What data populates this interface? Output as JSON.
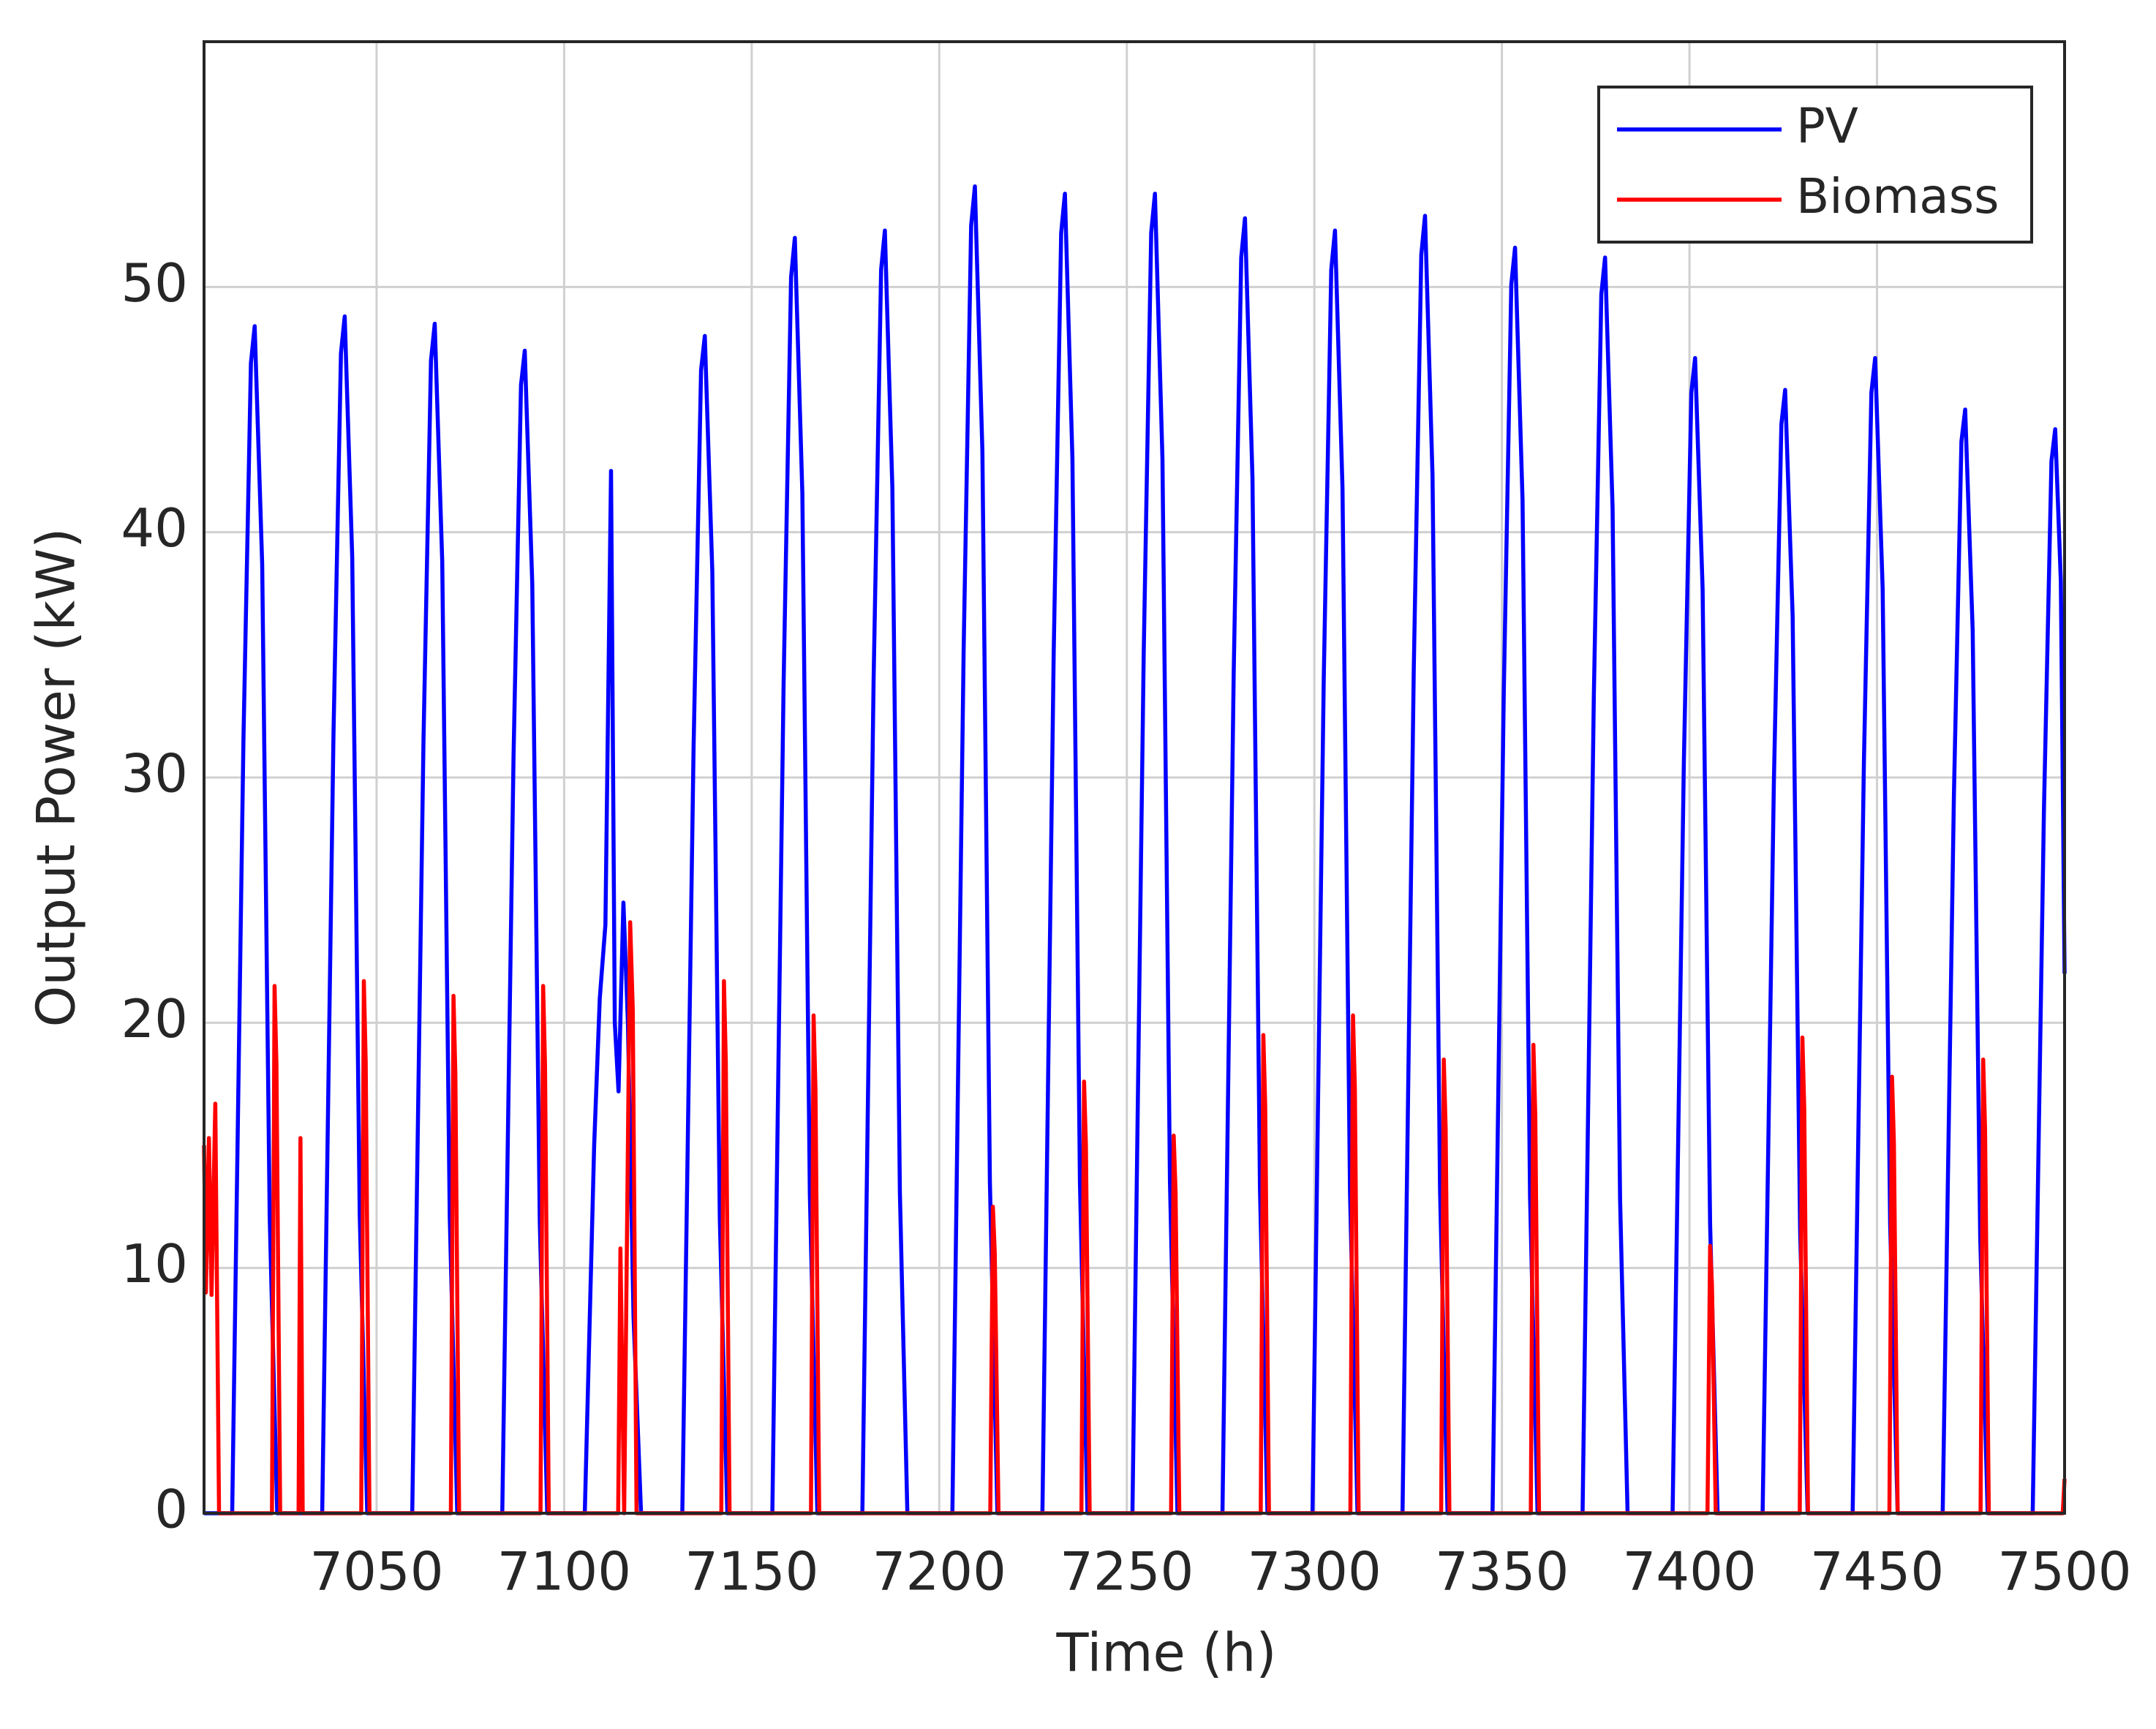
{
  "chart_data": {
    "type": "line",
    "x_label": "Time (h)",
    "y_label": "Output Power (kW)",
    "xlim": [
      7004,
      7500
    ],
    "ylim": [
      0,
      60
    ],
    "xticks": [
      7050,
      7100,
      7150,
      7200,
      7250,
      7300,
      7350,
      7400,
      7450,
      7500
    ],
    "yticks": [
      0,
      10,
      20,
      30,
      40,
      50
    ],
    "grid": true,
    "legend": "upper right",
    "series": [
      {
        "name": "PV",
        "color": "#0000ff",
        "x": [
          7004,
          7011.5,
          7014.5,
          7016.5,
          7017.5,
          7019.5,
          7021.5,
          7023.5,
          7035.5,
          7038.5,
          7040.5,
          7041.5,
          7043.5,
          7045.5,
          7047.5,
          7059.5,
          7062.5,
          7064.5,
          7065.5,
          7067.5,
          7069.5,
          7071.5,
          7083.5,
          7086.5,
          7088.5,
          7089.5,
          7091.5,
          7093.5,
          7095.5,
          7105.5,
          7108,
          7109.5,
          7111,
          7112.5,
          7113.5,
          7114.5,
          7115.8,
          7117,
          7118.5,
          7120.5,
          7131.5,
          7134.5,
          7136.5,
          7137.5,
          7139.5,
          7141.5,
          7143.5,
          7155.5,
          7158.5,
          7160.5,
          7161.5,
          7163.5,
          7165.5,
          7167.5,
          7179.5,
          7182.5,
          7184.5,
          7185.5,
          7187.5,
          7189.5,
          7191.5,
          7203.5,
          7206.5,
          7208.5,
          7209.5,
          7211.5,
          7213.5,
          7215.5,
          7227.5,
          7230.5,
          7232.5,
          7233.5,
          7235.5,
          7237.5,
          7239.5,
          7251.5,
          7254.5,
          7256.5,
          7257.5,
          7259.5,
          7261.5,
          7263.5,
          7275.5,
          7278.5,
          7280.5,
          7281.5,
          7283.5,
          7285.5,
          7287.5,
          7299.5,
          7302.5,
          7304.5,
          7305.5,
          7307.5,
          7309.5,
          7311.5,
          7323.5,
          7326.5,
          7328.5,
          7329.5,
          7331.5,
          7333.5,
          7335.5,
          7347.5,
          7350.5,
          7352.5,
          7353.5,
          7355.5,
          7357.5,
          7359.5,
          7371.5,
          7374.5,
          7376.5,
          7377.5,
          7379.5,
          7381.5,
          7383.5,
          7395.5,
          7398.5,
          7400.5,
          7401.5,
          7403.5,
          7405.5,
          7407.5,
          7419.5,
          7422.5,
          7424.5,
          7425.5,
          7427.5,
          7429.5,
          7431.5,
          7443.5,
          7446.5,
          7448.5,
          7449.5,
          7451.5,
          7453.5,
          7455.5,
          7467.5,
          7470.5,
          7472.5,
          7473.5,
          7475.5,
          7477.5,
          7479.5,
          7491.5,
          7494.5,
          7496.5,
          7497.5,
          7499,
          7500
        ],
        "values": [
          0,
          0,
          31.5,
          46.9,
          48.4,
          38.7,
          12.1,
          0,
          0,
          31.7,
          47.3,
          48.8,
          39,
          12.2,
          0,
          0,
          31.5,
          47,
          48.5,
          38.8,
          12.1,
          0,
          0,
          30.8,
          46,
          47.4,
          37.9,
          11.9,
          0,
          0,
          15,
          21,
          24,
          42.5,
          20,
          17.2,
          24.9,
          20,
          8,
          0,
          0,
          31.2,
          46.6,
          48,
          38.4,
          12,
          0,
          0,
          33.8,
          50.4,
          52,
          41.6,
          13,
          0,
          0,
          34,
          50.7,
          52.3,
          41.8,
          13.1,
          0,
          0,
          35.2,
          52.5,
          54.1,
          43.3,
          13.5,
          0,
          0,
          35,
          52.2,
          53.8,
          43,
          13.5,
          0,
          0,
          35,
          52.2,
          53.8,
          43,
          13.5,
          0,
          0,
          34.3,
          51.2,
          52.8,
          42.2,
          13.2,
          0,
          0,
          34,
          50.7,
          52.3,
          41.8,
          13.1,
          0,
          0,
          34.4,
          51.3,
          52.9,
          42.3,
          13.2,
          0,
          0,
          33.5,
          50.1,
          51.6,
          41.3,
          12.9,
          0,
          0,
          33.3,
          49.7,
          51.2,
          41,
          12.8,
          0,
          0,
          30.6,
          45.7,
          47.1,
          37.7,
          11.8,
          0,
          0,
          29.8,
          44.4,
          45.8,
          36.6,
          11.5,
          0,
          0,
          30.6,
          45.7,
          47.1,
          37.7,
          11.8,
          0,
          0,
          29.3,
          43.7,
          45,
          36,
          11.3,
          0,
          0,
          28.7,
          42.9,
          44.2,
          38,
          22
        ]
      },
      {
        "name": "Biomass",
        "color": "#ff0000",
        "x": [
          7004,
          7004.5,
          7005.3,
          7006,
          7007,
          7008,
          7022.1,
          7022.8,
          7023.3,
          7024.3,
          7029.2,
          7029.7,
          7030.3,
          7045.9,
          7046.6,
          7047.1,
          7048.1,
          7069.8,
          7070.5,
          7071,
          7072,
          7093.7,
          7094.4,
          7094.9,
          7095.9,
          7114.4,
          7115,
          7116,
          7117.6,
          7118.3,
          7119.3,
          7141.9,
          7142.6,
          7143.1,
          7144.1,
          7165.8,
          7166.5,
          7167,
          7168,
          7213.6,
          7214.3,
          7214.8,
          7215.8,
          7237.9,
          7238.6,
          7239.1,
          7240.1,
          7261.8,
          7262.5,
          7263,
          7264,
          7285.7,
          7286.4,
          7286.9,
          7287.9,
          7309.6,
          7310.3,
          7310.8,
          7311.8,
          7333.8,
          7334.5,
          7335,
          7336,
          7357.7,
          7358.4,
          7358.9,
          7359.9,
          7404.8,
          7405.5,
          7406,
          7407,
          7429.4,
          7430.1,
          7430.6,
          7431.6,
          7453.3,
          7454,
          7454.5,
          7455.5,
          7477.6,
          7478.3,
          7478.8,
          7479.8,
          7499.5,
          7500
        ],
        "values": [
          15,
          9,
          15.3,
          8.9,
          16.7,
          0,
          0,
          21.5,
          18.3,
          0,
          0,
          15.3,
          0,
          0,
          21.7,
          18.4,
          0,
          0,
          21.1,
          17.9,
          0,
          0,
          21.5,
          18.3,
          0,
          0,
          10.8,
          0,
          24.1,
          20.5,
          0,
          0,
          21.7,
          18.4,
          0,
          0,
          20.3,
          17.3,
          0,
          0,
          12.5,
          10.6,
          0,
          0,
          17.6,
          15,
          0,
          0,
          15.4,
          13.1,
          0,
          0,
          19.5,
          16.6,
          0,
          0,
          20.3,
          17.3,
          0,
          0,
          18.5,
          15.7,
          0,
          0,
          19.1,
          16.2,
          0,
          0,
          10.9,
          9.3,
          0,
          0,
          19.4,
          16.5,
          0,
          0,
          17.8,
          15.1,
          0,
          0,
          18.5,
          15.7,
          0,
          0,
          1.4
        ]
      }
    ]
  }
}
